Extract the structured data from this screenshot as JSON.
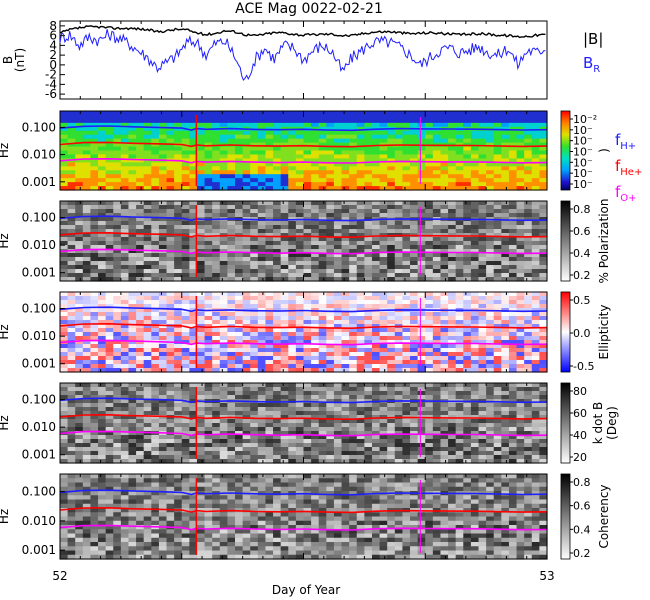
{
  "title": "ACE Mag 0022-02-21",
  "xlabel": "Day of Year",
  "x_ticks": [
    "52",
    "53"
  ],
  "x_range": [
    52,
    53
  ],
  "colors": {
    "black": "#000000",
    "blue": "#1f1fff",
    "red": "#ff0000",
    "magenta": "#ff00ff"
  },
  "chart_data": [
    {
      "type": "line",
      "panel": "magnetic-field",
      "ylabel": "B",
      "ylabel_unit": "(nT)",
      "ylim": [
        -7,
        9
      ],
      "ytick_labels": [
        "8",
        "6",
        "4",
        "2",
        "0",
        "-2",
        "-4",
        "-6"
      ],
      "ytick_values": [
        8,
        6,
        4,
        2,
        0,
        -2,
        -4,
        -6
      ],
      "legend": [
        {
          "label": "|B|",
          "color": "#000000"
        },
        {
          "label": "B",
          "sub": "R",
          "color": "#1f1fff"
        }
      ],
      "series": [
        {
          "name": "|B|",
          "color": "#000000",
          "x": [
            52.0,
            52.02,
            52.04,
            52.06,
            52.08,
            52.1,
            52.12,
            52.14,
            52.16,
            52.18,
            52.2,
            52.22,
            52.24,
            52.26,
            52.28,
            52.3,
            52.32,
            52.34,
            52.36,
            52.38,
            52.4,
            52.42,
            52.44,
            52.46,
            52.48,
            52.5,
            52.52,
            52.54,
            52.56,
            52.58,
            52.6,
            52.62,
            52.64,
            52.66,
            52.68,
            52.7,
            52.72,
            52.74,
            52.76,
            52.78,
            52.8,
            52.82,
            52.84,
            52.86,
            52.88,
            52.9,
            52.92,
            52.94,
            52.96,
            52.98,
            53.0
          ],
          "values": [
            6.5,
            7.2,
            7.6,
            7.8,
            7.8,
            7.6,
            7.5,
            7.5,
            7.4,
            7.2,
            6.8,
            7.0,
            7.3,
            7.2,
            6.6,
            6.2,
            6.5,
            7.0,
            6.8,
            6.2,
            6.0,
            6.3,
            6.6,
            6.6,
            6.3,
            6.1,
            6.2,
            6.3,
            6.3,
            6.0,
            6.0,
            6.4,
            6.7,
            6.8,
            6.8,
            6.6,
            6.4,
            6.5,
            6.6,
            6.5,
            6.3,
            6.2,
            6.3,
            6.4,
            6.3,
            6.1,
            6.0,
            5.8,
            5.9,
            6.1,
            6.2
          ]
        },
        {
          "name": "B_R",
          "color": "#1f1fff",
          "x": [
            52.0,
            52.02,
            52.04,
            52.06,
            52.08,
            52.1,
            52.12,
            52.14,
            52.16,
            52.18,
            52.2,
            52.22,
            52.24,
            52.26,
            52.28,
            52.3,
            52.32,
            52.34,
            52.36,
            52.38,
            52.4,
            52.42,
            52.44,
            52.46,
            52.48,
            52.5,
            52.52,
            52.54,
            52.56,
            52.58,
            52.6,
            52.62,
            52.64,
            52.66,
            52.68,
            52.7,
            52.72,
            52.74,
            52.76,
            52.78,
            52.8,
            52.82,
            52.84,
            52.86,
            52.88,
            52.9,
            52.92,
            52.94,
            52.96,
            52.98,
            53.0
          ],
          "values": [
            5.5,
            6.2,
            4.0,
            5.8,
            5.0,
            6.3,
            5.5,
            4.5,
            3.0,
            1.5,
            -0.5,
            0.5,
            2.0,
            4.5,
            4.8,
            2.0,
            4.5,
            4.8,
            1.5,
            -3.5,
            1.0,
            3.5,
            1.2,
            4.0,
            3.5,
            1.0,
            3.0,
            4.0,
            2.5,
            -1.5,
            1.5,
            3.0,
            4.5,
            4.8,
            4.5,
            3.5,
            2.0,
            0.0,
            1.5,
            3.0,
            3.5,
            2.5,
            3.0,
            3.8,
            2.5,
            2.0,
            3.5,
            0.0,
            3.0,
            2.5,
            3.8
          ]
        }
      ]
    },
    {
      "type": "heatmap",
      "panel": "power-spectrum",
      "ylabel": "Hz",
      "yscale": "log",
      "ylim": [
        0.0005,
        0.4
      ],
      "ytick_labels": [
        "0.100",
        "0.010",
        "0.001"
      ],
      "ytick_values": [
        0.1,
        0.01,
        0.001
      ],
      "colormap": "rainbow",
      "colorbar_ticks": [
        "10⁻²",
        "10⁻",
        "10⁻",
        "10⁻",
        "10⁻",
        "10⁻",
        "10⁻"
      ],
      "colorbar_label": ")",
      "gyro_legend": [
        {
          "label": "f",
          "sub": "H+",
          "color": "#1f1fff"
        },
        {
          "label": "f",
          "sub": "He+",
          "color": "#ff0000"
        },
        {
          "label": "f",
          "sub": "O+",
          "color": "#ff00ff"
        }
      ]
    },
    {
      "type": "heatmap",
      "panel": "polarization",
      "ylabel": "Hz",
      "yscale": "log",
      "ylim": [
        0.0005,
        0.4
      ],
      "ytick_labels": [
        "0.100",
        "0.010",
        "0.001"
      ],
      "ytick_values": [
        0.1,
        0.01,
        0.001
      ],
      "colormap": "gray",
      "colorbar_ticks": [
        "0.8",
        "0.6",
        "0.4",
        "0.2"
      ],
      "colorbar_label": "% Polarization"
    },
    {
      "type": "heatmap",
      "panel": "ellipticity",
      "ylabel": "Hz",
      "yscale": "log",
      "ylim": [
        0.0005,
        0.4
      ],
      "ytick_labels": [
        "0.100",
        "0.010",
        "0.001"
      ],
      "ytick_values": [
        0.1,
        0.01,
        0.001
      ],
      "colormap": "blue-white-red",
      "colorbar_ticks": [
        "0.5",
        "0.0",
        "-0.5"
      ],
      "colorbar_label": "Ellipticity"
    },
    {
      "type": "heatmap",
      "panel": "wave-angle",
      "ylabel": "Hz",
      "yscale": "log",
      "ylim": [
        0.0005,
        0.4
      ],
      "ytick_labels": [
        "0.100",
        "0.010",
        "0.001"
      ],
      "ytick_values": [
        0.1,
        0.01,
        0.001
      ],
      "colormap": "gray",
      "colorbar_ticks": [
        "80",
        "60",
        "40",
        "20"
      ],
      "colorbar_label": "k dot B",
      "colorbar_label2": "(Deg)"
    },
    {
      "type": "heatmap",
      "panel": "coherency",
      "ylabel": "Hz",
      "yscale": "log",
      "ylim": [
        0.0005,
        0.4
      ],
      "ytick_labels": [
        "0.100",
        "0.010",
        "0.001"
      ],
      "ytick_values": [
        0.1,
        0.01,
        0.001
      ],
      "colormap": "gray",
      "colorbar_ticks": [
        "0.8",
        "0.6",
        "0.4",
        "0.2"
      ],
      "colorbar_label": "Coherency"
    }
  ],
  "gyrofrequency_lines": {
    "x": [
      52.0,
      52.05,
      52.1,
      52.15,
      52.2,
      52.25,
      52.27,
      52.28,
      52.3,
      52.35,
      52.4,
      52.45,
      52.5,
      52.55,
      52.6,
      52.65,
      52.7,
      52.75,
      52.8,
      52.85,
      52.9,
      52.95,
      53.0
    ],
    "H+": [
      0.094,
      0.11,
      0.112,
      0.105,
      0.1,
      0.094,
      0.08,
      0.09,
      0.085,
      0.09,
      0.084,
      0.082,
      0.085,
      0.08,
      0.078,
      0.086,
      0.09,
      0.088,
      0.087,
      0.086,
      0.083,
      0.08,
      0.082
    ],
    "He+": [
      0.0235,
      0.0275,
      0.028,
      0.026,
      0.025,
      0.0235,
      0.02,
      0.0225,
      0.021,
      0.0225,
      0.021,
      0.0205,
      0.0212,
      0.02,
      0.0195,
      0.0215,
      0.0225,
      0.022,
      0.0217,
      0.0215,
      0.0207,
      0.02,
      0.0205
    ],
    "O+": [
      0.0059,
      0.0069,
      0.007,
      0.0066,
      0.0063,
      0.0059,
      0.005,
      0.0056,
      0.0053,
      0.0056,
      0.0053,
      0.0051,
      0.0053,
      0.005,
      0.0049,
      0.0054,
      0.0056,
      0.0055,
      0.0054,
      0.0054,
      0.0052,
      0.005,
      0.0051
    ]
  }
}
